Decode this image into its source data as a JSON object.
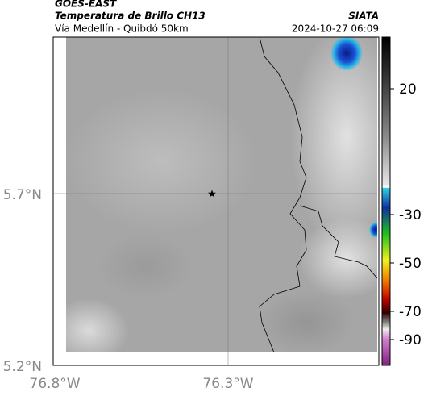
{
  "header": {
    "satellite": "GOES-EAST",
    "product": "Temperatura de Brillo CH13",
    "route": "Vía Medellín - Quibdó 50km",
    "agency": "SIATA",
    "datetime": "2024-10-27 06:09"
  },
  "axes": {
    "lat_labels": [
      "5.7°N",
      "5.2°N"
    ],
    "lon_labels": [
      "76.8°W",
      "76.3°W"
    ]
  },
  "colorbar": {
    "ticks": [
      20,
      -30,
      -50,
      -70,
      -90
    ]
  }
}
